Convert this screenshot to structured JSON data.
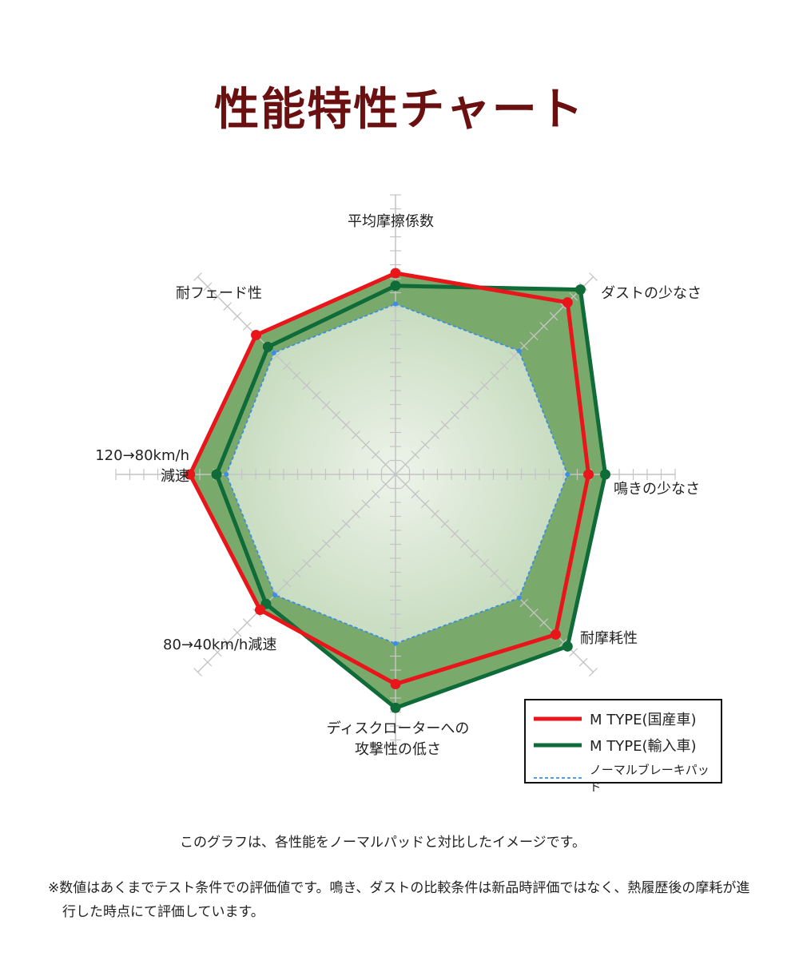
{
  "chart_data": {
    "type": "radar",
    "title": "性能特性チャート",
    "categories": [
      "平均摩擦係数",
      "ダストの少なさ",
      "鳴きの少なさ",
      "耐摩耗性",
      "ディスクローターへの\n攻撃性の低さ",
      "80→40km/h減速",
      "120→80km/h\n減速",
      "耐フェード性"
    ],
    "rlim": [
      0,
      20
    ],
    "rticks": [
      1,
      2,
      3,
      4,
      5,
      6,
      7,
      8,
      9,
      10,
      11,
      12,
      13,
      14,
      15,
      16,
      17,
      18,
      19,
      20
    ],
    "series": [
      {
        "name": "M TYPE(国産車)",
        "color": "#e8161b",
        "values": [
          14.4,
          17.4,
          13.8,
          16.2,
          15.0,
          13.7,
          14.7,
          14.1
        ]
      },
      {
        "name": "M TYPE(輸入車)",
        "color": "#0f6b37",
        "values": [
          13.5,
          18.7,
          15.0,
          17.4,
          16.7,
          13.1,
          12.8,
          12.9
        ]
      },
      {
        "name": "ノーマルブレーキパッド",
        "color": "#3a8ee6",
        "dashed": true,
        "values": [
          12.2,
          12.5,
          12.3,
          12.5,
          12.1,
          12.2,
          12.1,
          12.3
        ]
      }
    ],
    "notes": [
      "このグラフは、各性能をノーマルパッドと対比したイメージです。",
      "※数値はあくまでテスト条件での評価値です。鳴き、ダストの比較条件は新品時評価ではなく、熱履歴後の摩耗が進行した時点にて評価しています。"
    ]
  }
}
